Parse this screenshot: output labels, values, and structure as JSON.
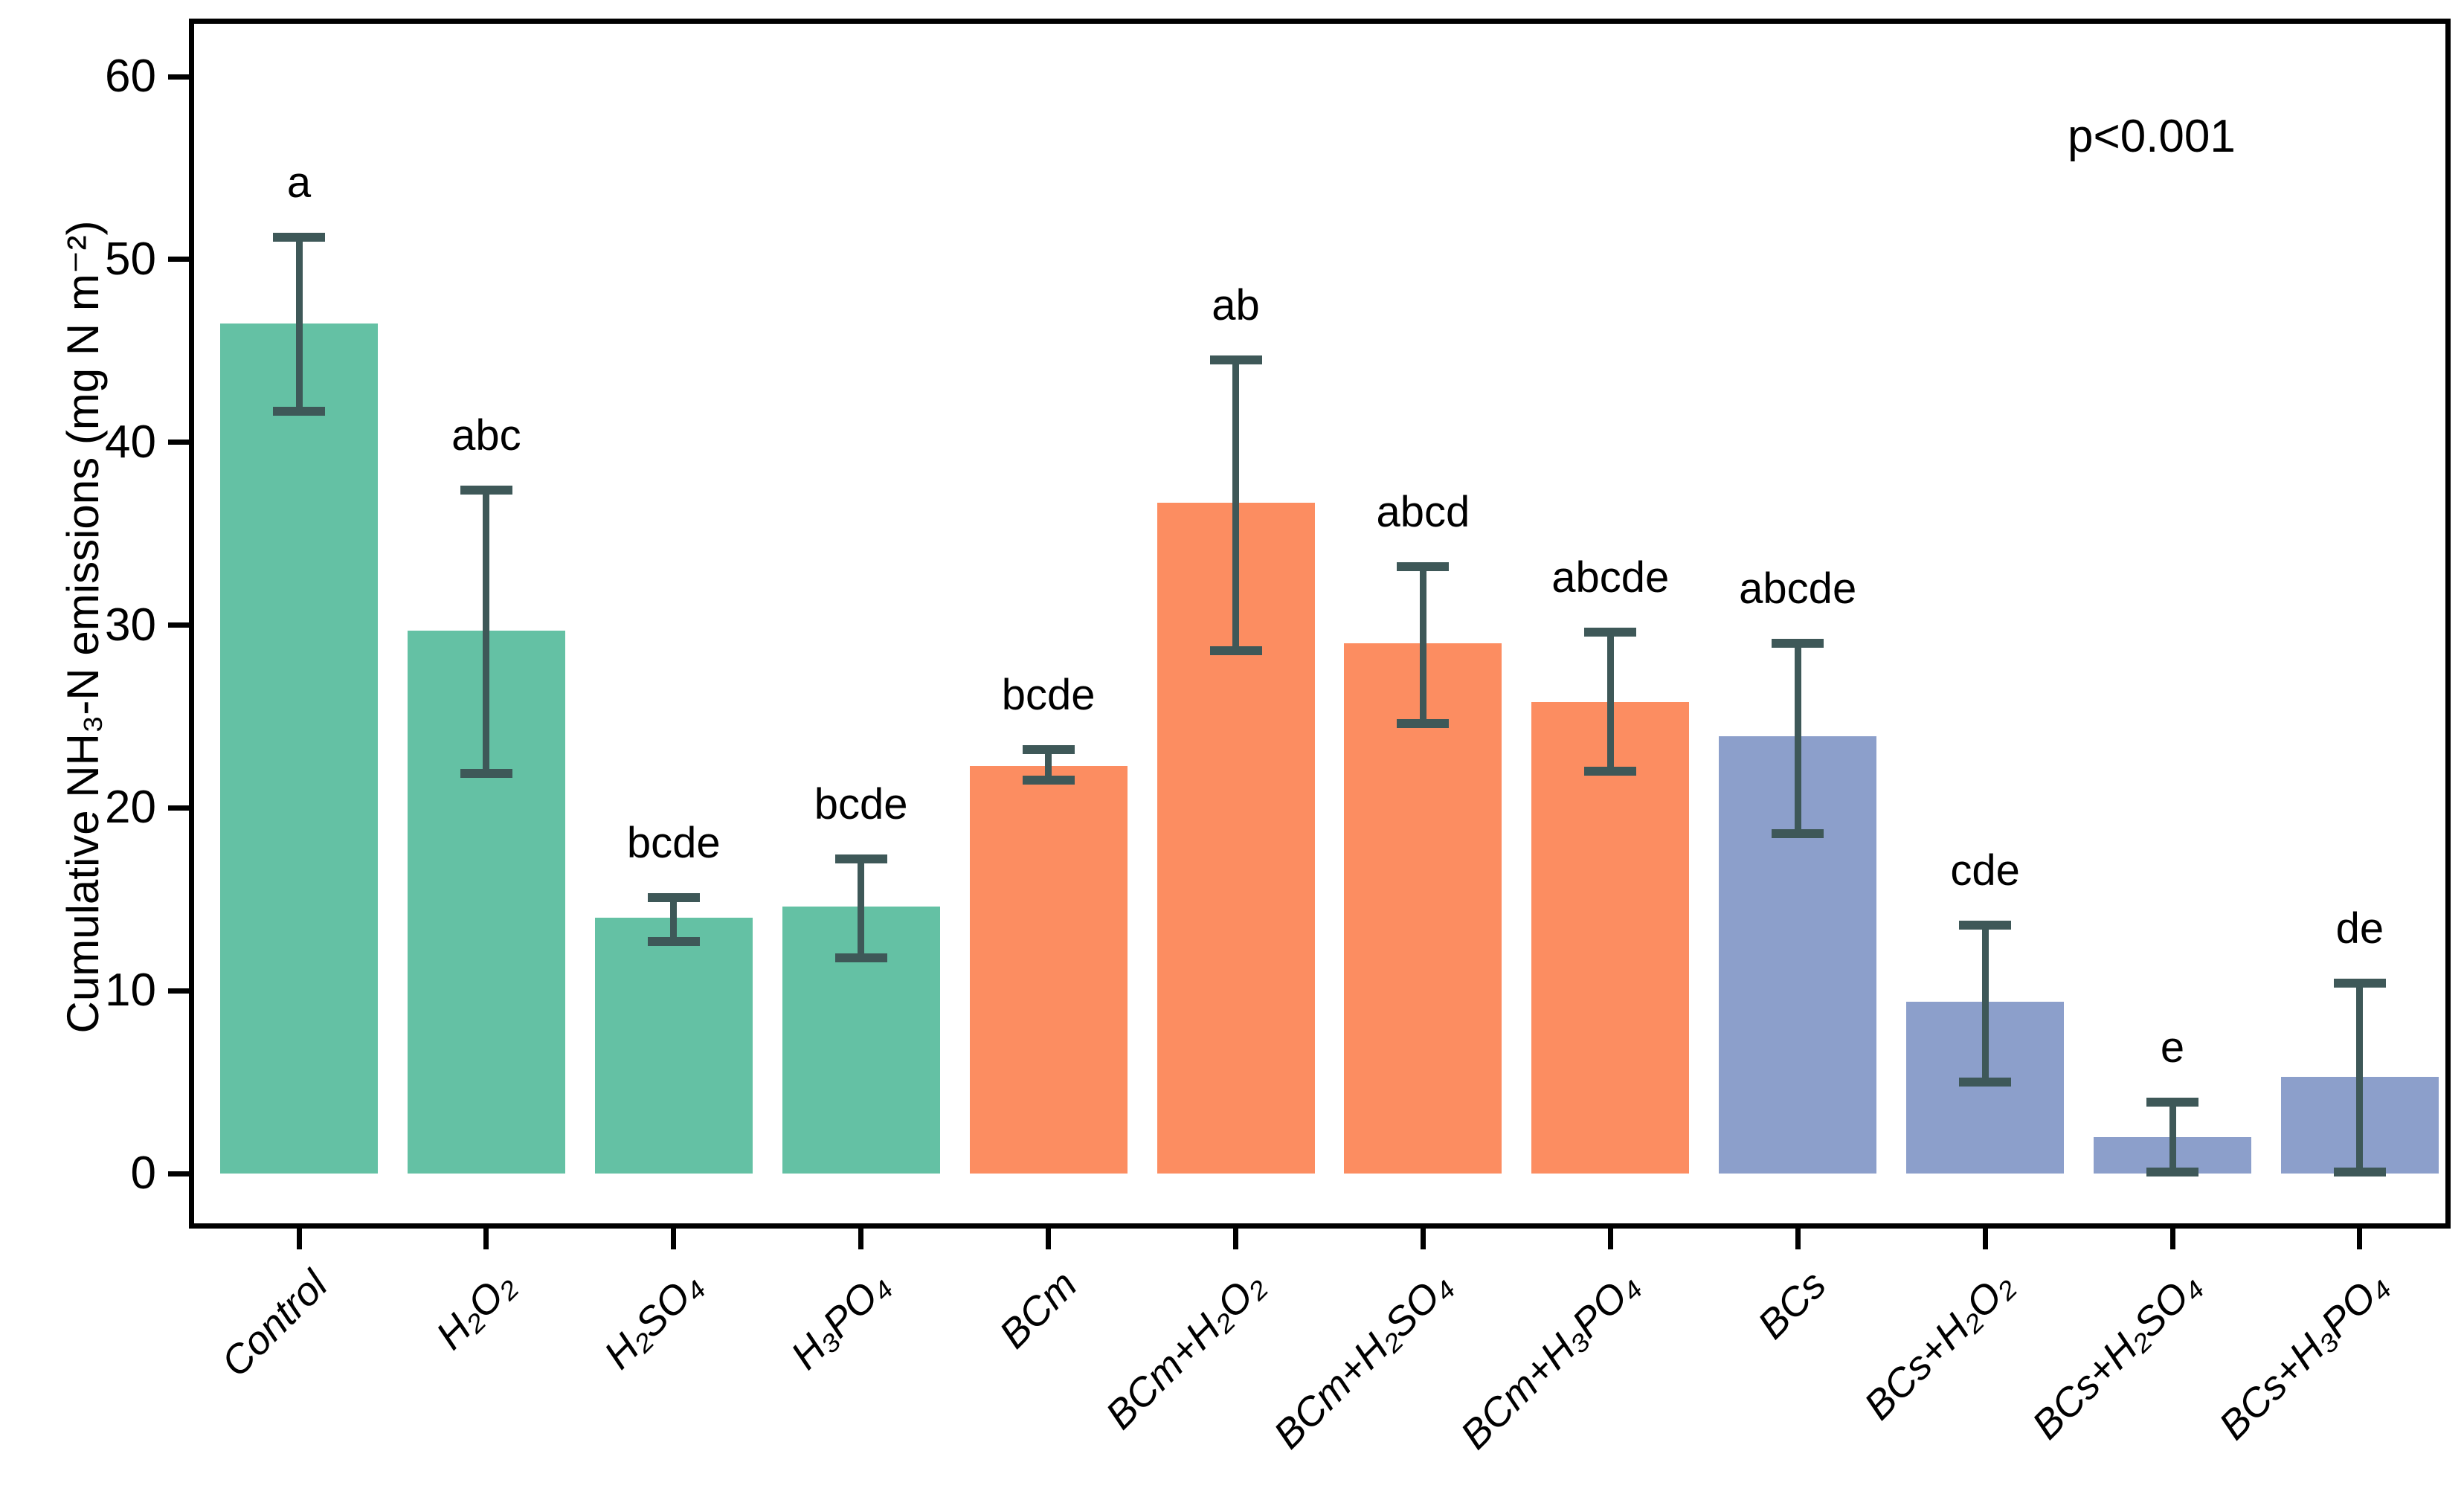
{
  "colors": {
    "green": "#64C1A4",
    "orange": "#FC8D61",
    "blue": "#8C9FCB",
    "error_bar": "#3E5858",
    "axis": "#000000",
    "background": "#FFFFFF"
  },
  "chart_data": {
    "type": "bar",
    "title": "",
    "xlabel": "",
    "ylabel": "Cumulative NH₃-N emissions (mg N m⁻²)",
    "annotation": "p<0.001",
    "ylim": [
      -3,
      63
    ],
    "yticks": [
      "0",
      "10",
      "20",
      "30",
      "40",
      "50",
      "60"
    ],
    "ytick_values": [
      0,
      10,
      20,
      30,
      40,
      50,
      60
    ],
    "grid": false,
    "legend": "none",
    "categories": [
      "Control",
      "H₂O₂",
      "H₂SO₄",
      "H₃PO₄",
      "BCm",
      "BCm+H₂O₂",
      "BCm+H₂SO₄",
      "BCm+H₃PO₄",
      "BCs",
      "BCs+H₂O₂",
      "BCs+H₂SO₄",
      "BCs+H₃PO₄"
    ],
    "bars": [
      {
        "label": "Control",
        "value": 46.5,
        "err_down": 4.8,
        "err_up": 4.7,
        "letter": "a",
        "color": "green"
      },
      {
        "label": "H₂O₂",
        "value": 29.7,
        "err_down": 7.8,
        "err_up": 7.7,
        "letter": "abc",
        "color": "green"
      },
      {
        "label": "H₂SO₄",
        "value": 14.0,
        "err_down": 1.3,
        "err_up": 1.1,
        "letter": "bcde",
        "color": "green"
      },
      {
        "label": "H₃PO₄",
        "value": 14.6,
        "err_down": 2.8,
        "err_up": 2.6,
        "letter": "bcde",
        "color": "green"
      },
      {
        "label": "BCm",
        "value": 22.3,
        "err_down": 0.8,
        "err_up": 0.9,
        "letter": "bcde",
        "color": "orange"
      },
      {
        "label": "BCm+H₂O₂",
        "value": 36.7,
        "err_down": 8.1,
        "err_up": 7.8,
        "letter": "ab",
        "color": "orange"
      },
      {
        "label": "BCm+H₂SO₄",
        "value": 29.0,
        "err_down": 4.4,
        "err_up": 4.2,
        "letter": "abcd",
        "color": "orange"
      },
      {
        "label": "BCm+H₃PO₄",
        "value": 25.8,
        "err_down": 3.8,
        "err_up": 3.8,
        "letter": "abcde",
        "color": "orange"
      },
      {
        "label": "BCs",
        "value": 23.9,
        "err_down": 5.3,
        "err_up": 5.1,
        "letter": "abcde",
        "color": "blue"
      },
      {
        "label": "BCs+H₂O₂",
        "value": 9.4,
        "err_down": 4.4,
        "err_up": 4.2,
        "letter": "cde",
        "color": "blue"
      },
      {
        "label": "BCs+H₂SO₄",
        "value": 2.0,
        "err_down": 1.9,
        "err_up": 1.9,
        "letter": "e",
        "color": "blue"
      },
      {
        "label": "BCs+H₃PO₄",
        "value": 5.3,
        "err_down": 5.2,
        "err_up": 5.1,
        "letter": "de",
        "color": "blue"
      }
    ]
  }
}
